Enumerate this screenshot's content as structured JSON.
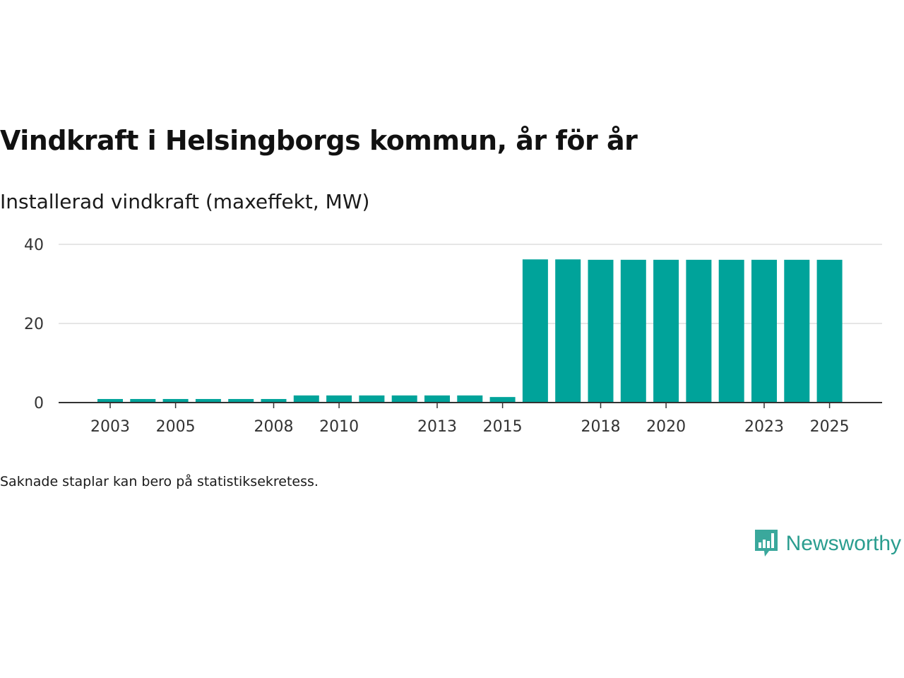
{
  "title": "Vindkraft i Helsingborgs kommun, år för år",
  "subtitle": "Installerad vindkraft (maxeffekt, MW)",
  "footnote": "Saknade staplar kan bero på statistiksekretess.",
  "brand": {
    "name": "Newsworthy",
    "icon": "newsworthy-logo-icon",
    "color": "#2a9d8f"
  },
  "colors": {
    "bar": "#00a39a",
    "grid": "#dddddd",
    "axis": "#333333"
  },
  "chart_data": {
    "type": "bar",
    "title": "Vindkraft i Helsingborgs kommun, år för år",
    "ylabel": "Installerad vindkraft (maxeffekt, MW)",
    "xlabel": "",
    "categories": [
      "2003",
      "2004",
      "2005",
      "2006",
      "2007",
      "2008",
      "2009",
      "2010",
      "2011",
      "2012",
      "2013",
      "2014",
      "2015",
      "2016",
      "2017",
      "2018",
      "2019",
      "2020",
      "2021",
      "2022",
      "2023",
      "2024",
      "2025"
    ],
    "x_tick_labels": [
      "2003",
      "2005",
      "2008",
      "2010",
      "2013",
      "2015",
      "2018",
      "2020",
      "2023",
      "2025"
    ],
    "values": [
      0.9,
      0.9,
      0.9,
      0.9,
      0.9,
      0.9,
      1.8,
      1.8,
      1.8,
      1.8,
      1.8,
      1.8,
      1.4,
      36.2,
      36.2,
      36.1,
      36.1,
      36.1,
      36.1,
      36.1,
      36.1,
      36.1,
      36.1
    ],
    "y_ticks": [
      0,
      20,
      40
    ],
    "ylim": [
      0,
      40
    ],
    "grid": true,
    "legend": "none"
  }
}
